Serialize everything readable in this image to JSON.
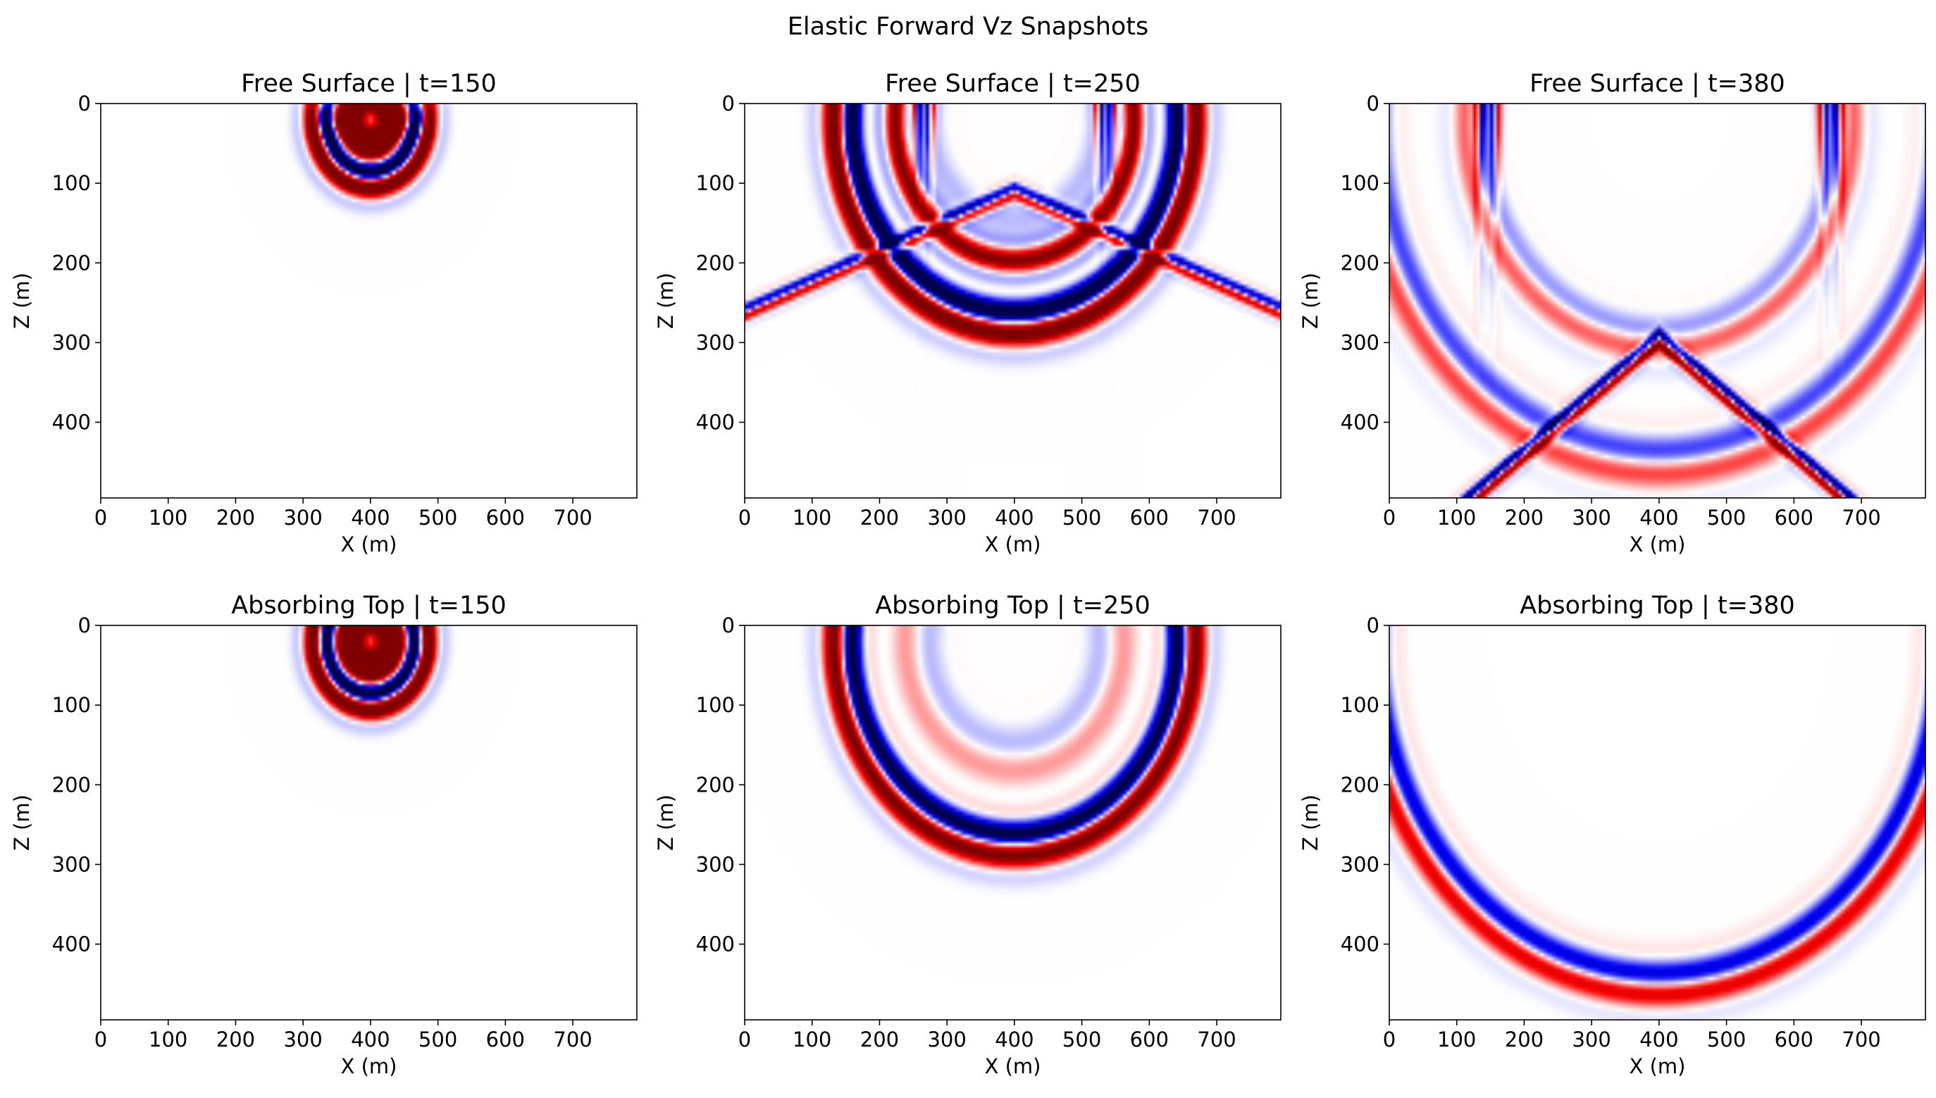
{
  "figure": {
    "suptitle": "Elastic Forward Vz Snapshots"
  },
  "chart_data": {
    "type": "heatmap",
    "colormap": "seismic",
    "grid": false,
    "xlabel": "X (m)",
    "ylabel": "Z (m)",
    "xlim": [
      0,
      795
    ],
    "ylim": [
      495,
      0
    ],
    "xticks": [
      0,
      100,
      200,
      300,
      400,
      500,
      600,
      700
    ],
    "yticks": [
      0,
      100,
      200,
      300,
      400
    ],
    "panels": [
      {
        "title": "Free Surface | t=150",
        "mode": "free",
        "t": 150
      },
      {
        "title": "Free Surface | t=250",
        "mode": "free",
        "t": 250
      },
      {
        "title": "Free Surface | t=380",
        "mode": "free",
        "t": 380
      },
      {
        "title": "Absorbing Top | t=150",
        "mode": "absorbing",
        "t": 150
      },
      {
        "title": "Absorbing Top | t=250",
        "mode": "absorbing",
        "t": 250
      },
      {
        "title": "Absorbing Top | t=380",
        "mode": "absorbing",
        "t": 380
      }
    ]
  }
}
